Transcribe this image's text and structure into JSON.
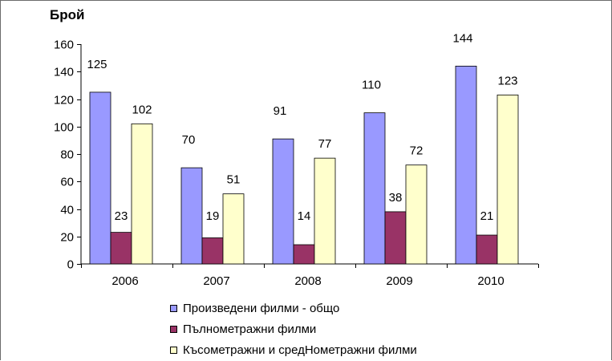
{
  "chart_data": {
    "type": "bar",
    "ylabel": "Брой",
    "categories": [
      "2006",
      "2007",
      "2008",
      "2009",
      "2010"
    ],
    "ylim": [
      0,
      160
    ],
    "yticks": [
      0,
      20,
      40,
      60,
      80,
      100,
      120,
      140,
      160
    ],
    "grid": false,
    "legend_position": "bottom",
    "series": [
      {
        "name": "Произведени филми - общо",
        "values": [
          125,
          70,
          91,
          110,
          144
        ],
        "color": "#9999ff"
      },
      {
        "name": "Пълнометражни филми",
        "values": [
          23,
          19,
          14,
          38,
          21
        ],
        "color": "#993366"
      },
      {
        "name": "Късометражни и средНометражни филми",
        "values": [
          102,
          51,
          77,
          72,
          123
        ],
        "color": "#ffffcc"
      }
    ]
  }
}
